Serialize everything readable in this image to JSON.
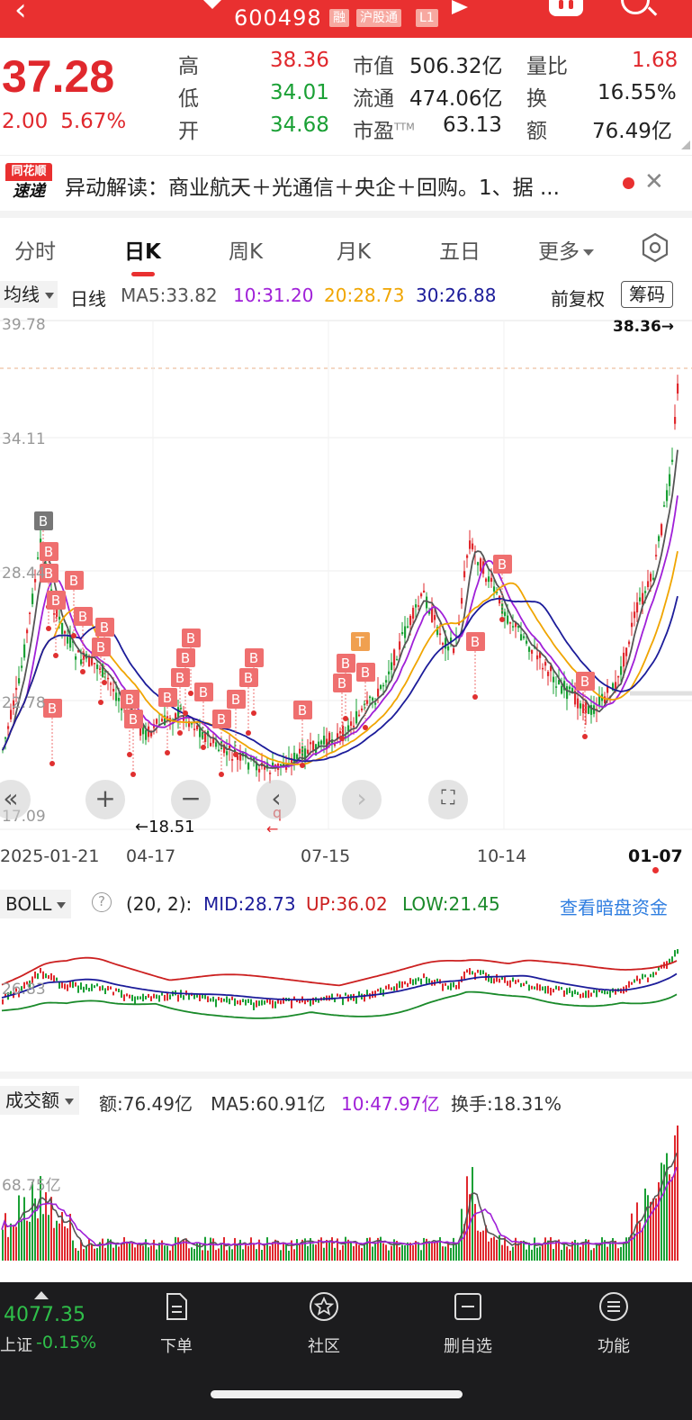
{
  "header": {
    "code": "600498",
    "tags": [
      "融",
      "沪股通",
      "L1"
    ]
  },
  "quote": {
    "price": "37.28",
    "change": "2.00",
    "change_pct": "5.67%",
    "high_label": "高",
    "high": "38.36",
    "low_label": "低",
    "low": "34.01",
    "open_label": "开",
    "open": "34.68",
    "mcap_label": "市值",
    "mcap": "506.32亿",
    "float_label": "流通",
    "float": "474.06亿",
    "pe_label": "市盈",
    "pe_sup": "TTM",
    "pe": "63.13",
    "vr_label": "量比",
    "vr": "1.68",
    "turnover_label": "换",
    "turnover": "16.55%",
    "amount_label": "额",
    "amount": "76.49亿"
  },
  "news": {
    "logo_top": "同花顺",
    "logo_bottom": "速递",
    "text": "异动解读：商业航天＋光通信＋央企＋回购。1、据 ..."
  },
  "tabs": [
    "分时",
    "日K",
    "周K",
    "月K",
    "五日",
    "更多"
  ],
  "active_tab": 1,
  "indicator": {
    "selector": "均线",
    "period": "日线",
    "ma5": "MA5:33.82",
    "ma10": "10:31.20",
    "ma20": "20:28.73",
    "ma30": "30:26.88",
    "adjust": "前复权",
    "chips": "筹码"
  },
  "main_chart": {
    "y_labels": [
      "39.78",
      "34.11",
      "28.44",
      "22.78",
      "17.09"
    ],
    "high_marker": "38.36→",
    "low_marker": "←18.51",
    "q_marker": "q",
    "marker_B": "B",
    "marker_T": "T",
    "dates": [
      "2025-01-21",
      "04-17",
      "07-15",
      "10-14",
      "01-07"
    ]
  },
  "boll": {
    "selector": "BOLL",
    "help": "?",
    "params": "(20, 2):",
    "mid": "MID:28.73",
    "up": "UP:36.02",
    "low": "LOW:21.45",
    "link": "查看暗盘资金",
    "y_label": "26.83"
  },
  "volume": {
    "selector": "成交额",
    "amount": "额:76.49亿",
    "ma5": "MA5:60.91亿",
    "ma10": "10:47.97亿",
    "turnover": "换手:18.31%",
    "y_label": "68.75亿"
  },
  "bottom": {
    "index_value": "4077.35",
    "index_name": "上证",
    "index_pct": "-0.15%",
    "items": [
      "下单",
      "社区",
      "删自选",
      "功能"
    ]
  },
  "colors": {
    "up": "#e0282d",
    "down": "#1aa035",
    "ma5": "#555555",
    "ma10": "#a020d8",
    "ma20": "#f0a500",
    "ma30": "#1c1c9a"
  }
}
